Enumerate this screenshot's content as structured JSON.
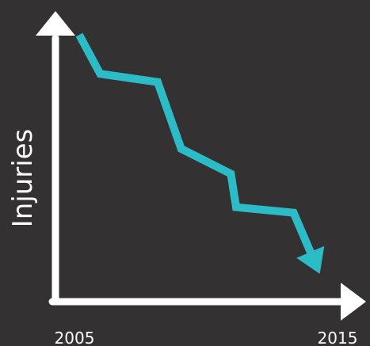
{
  "colors": {
    "background": "#333131",
    "axis": "#ffffff",
    "series": "#2cbcc8"
  },
  "chart_data": {
    "type": "line",
    "title": "",
    "xlabel": "",
    "ylabel": "Injuries",
    "x_tick_labels": [
      "2005",
      "2015"
    ],
    "xlim": [
      2005,
      2015
    ],
    "ylim": [
      0,
      100
    ],
    "grid": false,
    "legend": "none",
    "series": [
      {
        "x": [
          2005,
          2005.8,
          2008,
          2008.9,
          2010.8,
          2011,
          2013.2,
          2014.2
        ],
        "y": [
          96,
          82,
          79,
          55,
          46,
          34,
          32,
          10
        ],
        "end_marker": "arrow"
      }
    ]
  }
}
